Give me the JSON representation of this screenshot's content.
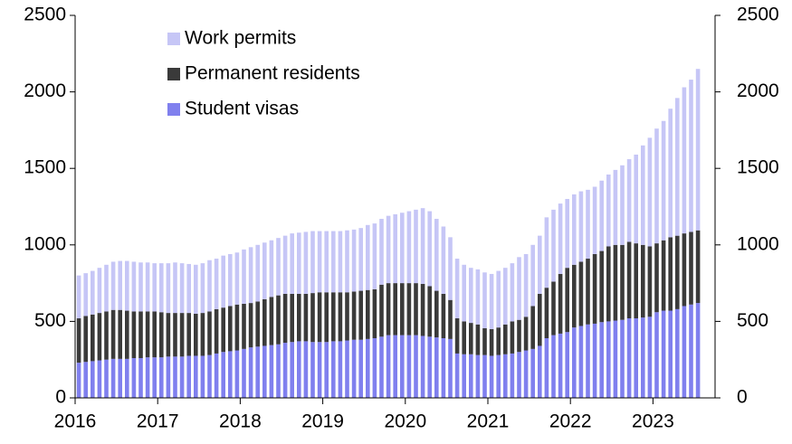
{
  "chart_data": {
    "type": "stacked_bar",
    "categories": [
      "2016",
      null,
      null,
      null,
      null,
      null,
      null,
      null,
      null,
      null,
      null,
      null,
      "2017",
      null,
      null,
      null,
      null,
      null,
      null,
      null,
      null,
      null,
      null,
      null,
      "2018",
      null,
      null,
      null,
      null,
      null,
      null,
      null,
      null,
      null,
      null,
      null,
      "2019",
      null,
      null,
      null,
      null,
      null,
      null,
      null,
      null,
      null,
      null,
      null,
      "2020",
      null,
      null,
      null,
      null,
      null,
      null,
      null,
      null,
      null,
      null,
      null,
      "2021",
      null,
      null,
      null,
      null,
      null,
      null,
      null,
      null,
      null,
      null,
      null,
      "2022",
      null,
      null,
      null,
      null,
      null,
      null,
      null,
      null,
      null,
      null,
      null,
      "2023",
      null,
      null,
      null,
      null,
      null,
      null
    ],
    "series": [
      {
        "name": "Student visas",
        "color": "#8080ee",
        "values": [
          230,
          235,
          240,
          245,
          250,
          255,
          255,
          255,
          260,
          260,
          265,
          265,
          265,
          270,
          270,
          270,
          275,
          275,
          275,
          280,
          290,
          300,
          305,
          310,
          320,
          330,
          335,
          340,
          345,
          350,
          360,
          365,
          370,
          370,
          365,
          365,
          365,
          370,
          370,
          375,
          380,
          380,
          385,
          390,
          400,
          410,
          410,
          410,
          410,
          410,
          405,
          400,
          395,
          390,
          385,
          290,
          285,
          285,
          280,
          280,
          275,
          280,
          285,
          290,
          300,
          310,
          320,
          340,
          390,
          410,
          420,
          430,
          460,
          470,
          480,
          485,
          495,
          500,
          505,
          510,
          520,
          520,
          525,
          530,
          560,
          570,
          570,
          580,
          600,
          610,
          620
        ]
      },
      {
        "name": "Permanent residents",
        "color": "#3a3a3a",
        "values": [
          290,
          300,
          305,
          310,
          315,
          320,
          320,
          315,
          305,
          305,
          300,
          300,
          295,
          285,
          285,
          285,
          280,
          275,
          280,
          285,
          290,
          290,
          295,
          300,
          295,
          290,
          295,
          305,
          315,
          320,
          320,
          315,
          310,
          310,
          320,
          325,
          325,
          320,
          320,
          315,
          315,
          320,
          320,
          320,
          340,
          340,
          340,
          340,
          340,
          340,
          340,
          330,
          305,
          290,
          255,
          230,
          215,
          205,
          200,
          175,
          175,
          180,
          195,
          210,
          210,
          220,
          280,
          340,
          330,
          350,
          390,
          420,
          410,
          420,
          430,
          455,
          465,
          490,
          495,
          490,
          500,
          490,
          475,
          460,
          450,
          460,
          480,
          480,
          475,
          475,
          475
        ]
      },
      {
        "name": "Work permits",
        "color": "#c6c6f6",
        "values": [
          280,
          280,
          285,
          295,
          305,
          315,
          320,
          325,
          325,
          320,
          320,
          315,
          320,
          325,
          330,
          325,
          320,
          320,
          325,
          335,
          330,
          340,
          340,
          340,
          355,
          365,
          370,
          370,
          370,
          375,
          380,
          395,
          400,
          405,
          405,
          400,
          400,
          400,
          400,
          405,
          405,
          410,
          425,
          430,
          430,
          440,
          450,
          460,
          470,
          480,
          495,
          490,
          470,
          440,
          410,
          390,
          370,
          360,
          360,
          365,
          360,
          370,
          370,
          380,
          410,
          410,
          400,
          380,
          460,
          470,
          460,
          450,
          460,
          460,
          450,
          440,
          460,
          470,
          490,
          520,
          540,
          580,
          650,
          710,
          750,
          780,
          840,
          900,
          955,
          995,
          1055
        ]
      }
    ],
    "ylim": [
      0,
      2500
    ],
    "yticks": [
      0,
      500,
      1000,
      1500,
      2000,
      2500
    ],
    "y2lim": [
      0,
      2500
    ],
    "y2ticks": [
      0,
      500,
      1000,
      1500,
      2000,
      2500
    ],
    "legend": "upper left"
  }
}
